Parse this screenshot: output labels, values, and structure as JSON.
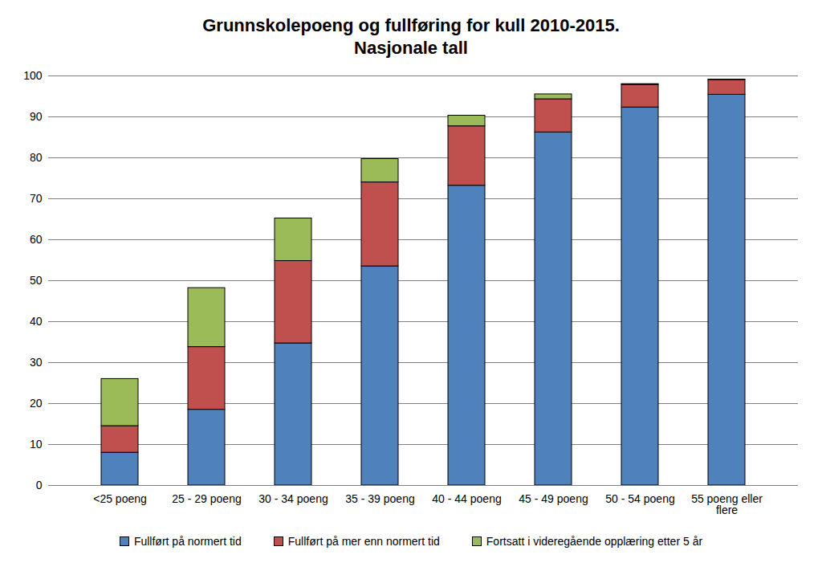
{
  "chart_data": {
    "type": "bar",
    "title": "Grunnskolepoeng og fullføring for kull 2010-2015.",
    "subtitle": "Nasjonale tall",
    "categories": [
      "<25 poeng",
      "25 - 29 poeng",
      "30 - 34 poeng",
      "35 - 39 poeng",
      "40 - 44 poeng",
      "45 - 49 poeng",
      "50 - 54 poeng",
      "55 poeng eller flere"
    ],
    "series": [
      {
        "name": "Fullført på normert tid",
        "color": "#4f81bd",
        "values": [
          8,
          18.5,
          34.7,
          53.5,
          73.2,
          86.2,
          92.3,
          95.4
        ]
      },
      {
        "name": "Fullført på mer enn normert tid",
        "color": "#c0504d",
        "values": [
          6.5,
          15.3,
          20.1,
          20.5,
          14.5,
          8.1,
          5.5,
          3.6
        ]
      },
      {
        "name": "Fortsatt i videregående opplæring etter 5 år",
        "color": "#9bbb59",
        "values": [
          11.5,
          14.4,
          10.4,
          5.7,
          2.6,
          1.2,
          0.2,
          0.1
        ]
      }
    ],
    "ylim": [
      0,
      100
    ],
    "yticks": [
      0,
      10,
      20,
      30,
      40,
      50,
      60,
      70,
      80,
      90,
      100
    ],
    "grid": true,
    "stacked": true,
    "legend": "bottom"
  }
}
